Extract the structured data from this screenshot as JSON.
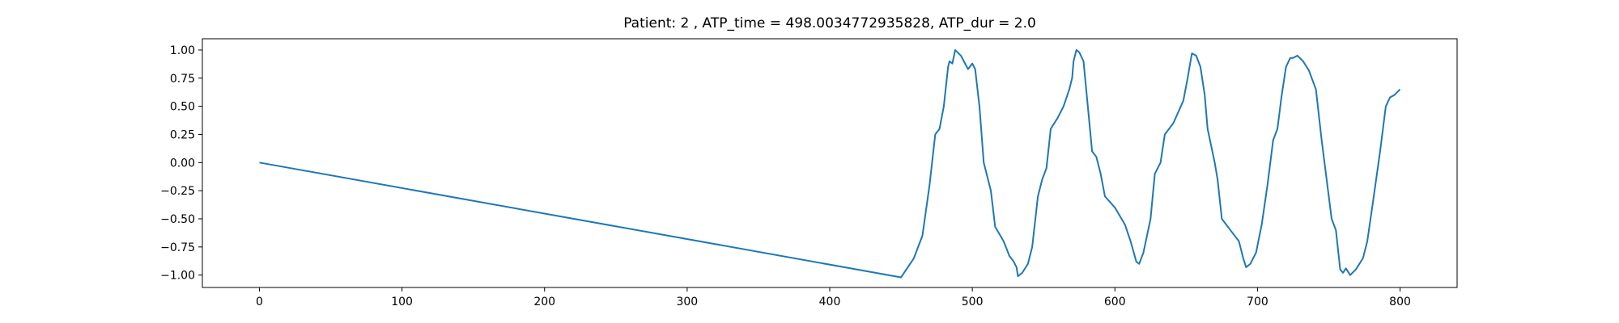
{
  "chart_data": {
    "type": "line",
    "title": "Patient: 2 , ATP_time = 498.0034772935828, ATP_dur = 2.0",
    "x": [
      0,
      450,
      459,
      465,
      470,
      474,
      477,
      480,
      483,
      484,
      486,
      488,
      492,
      497,
      500,
      502,
      505,
      508,
      510,
      513,
      516,
      522,
      526,
      529,
      531,
      532,
      535,
      539,
      542,
      546,
      549,
      552,
      555,
      560,
      564,
      568,
      570,
      571,
      573,
      575,
      578,
      581,
      584,
      587,
      590,
      593,
      600,
      607,
      611,
      615,
      617,
      620,
      625,
      628,
      632,
      635,
      641,
      648,
      651,
      654,
      657,
      660,
      663,
      665,
      670,
      672,
      675,
      681,
      687,
      690,
      692,
      695,
      699,
      703,
      707,
      711,
      714,
      717,
      720,
      723,
      725,
      728,
      732,
      736,
      741,
      745,
      749,
      752,
      755,
      758,
      760,
      762,
      765,
      769,
      774,
      777,
      781,
      786,
      790,
      793,
      796,
      800
    ],
    "series": [
      {
        "color": "#1f77b4",
        "values": [
          0,
          -1.02,
          -0.85,
          -0.65,
          -0.2,
          0.25,
          0.3,
          0.5,
          0.85,
          0.9,
          0.88,
          1.0,
          0.95,
          0.83,
          0.88,
          0.83,
          0.5,
          0.0,
          -0.1,
          -0.25,
          -0.57,
          -0.7,
          -0.83,
          -0.88,
          -0.93,
          -1.01,
          -0.98,
          -0.9,
          -0.75,
          -0.3,
          -0.15,
          -0.05,
          0.3,
          0.4,
          0.5,
          0.65,
          0.75,
          0.9,
          1.0,
          0.98,
          0.9,
          0.5,
          0.1,
          0.05,
          -0.1,
          -0.3,
          -0.4,
          -0.55,
          -0.7,
          -0.88,
          -0.9,
          -0.8,
          -0.5,
          -0.1,
          0.0,
          0.25,
          0.35,
          0.55,
          0.75,
          0.97,
          0.95,
          0.85,
          0.6,
          0.3,
          0.0,
          -0.15,
          -0.5,
          -0.6,
          -0.7,
          -0.85,
          -0.93,
          -0.9,
          -0.8,
          -0.55,
          -0.2,
          0.2,
          0.3,
          0.6,
          0.85,
          0.93,
          0.93,
          0.95,
          0.9,
          0.82,
          0.65,
          0.2,
          -0.2,
          -0.5,
          -0.6,
          -0.95,
          -0.98,
          -0.94,
          -1.0,
          -0.95,
          -0.85,
          -0.7,
          -0.35,
          0.1,
          0.5,
          0.58,
          0.6,
          0.65
        ]
      }
    ],
    "xlim": [
      -40,
      840
    ],
    "xticks": [
      0,
      100,
      200,
      300,
      400,
      500,
      600,
      700,
      800
    ],
    "ylim": [
      -1.11,
      1.1
    ],
    "yticks": [
      {
        "value": -1,
        "label": "−1.00"
      },
      {
        "value": -0.75,
        "label": "−0.75"
      },
      {
        "value": -0.5,
        "label": "−0.50"
      },
      {
        "value": -0.25,
        "label": "−0.25"
      },
      {
        "value": 0,
        "label": "0.00"
      },
      {
        "value": 0.25,
        "label": "0.25"
      },
      {
        "value": 0.5,
        "label": "0.50"
      },
      {
        "value": 0.75,
        "label": "0.75"
      },
      {
        "value": 1,
        "label": "1.00"
      }
    ],
    "grid": false
  }
}
